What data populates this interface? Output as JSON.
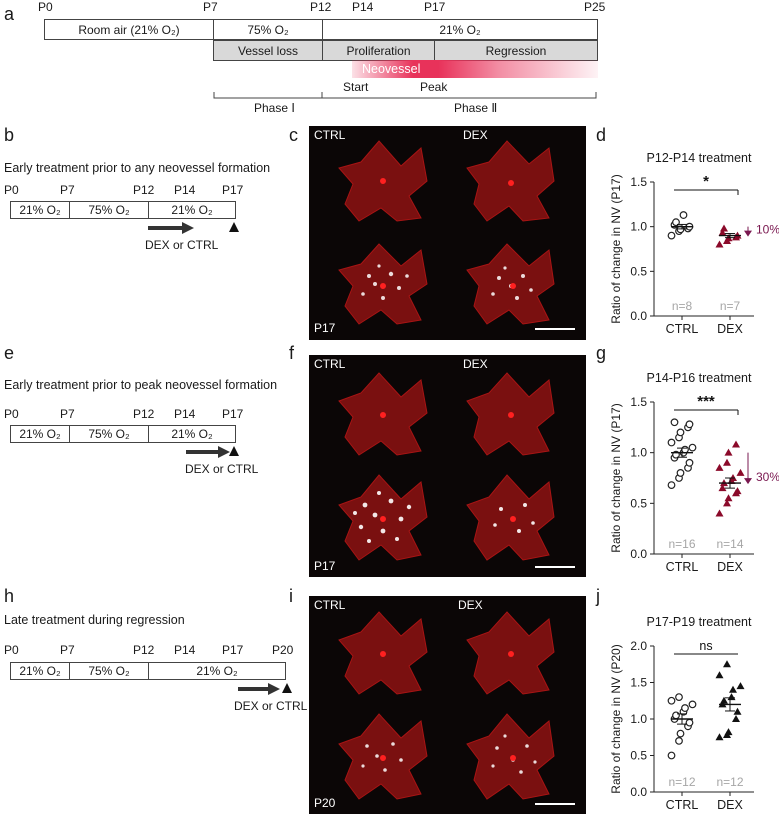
{
  "panel_a": {
    "label": "a",
    "day_labels": [
      "P0",
      "P7",
      "P12",
      "P14",
      "P17",
      "P25"
    ],
    "row1": [
      "Room air (21% O₂)",
      "75% O₂",
      "21% O₂"
    ],
    "row2": [
      "Vessel loss",
      "Proliferation",
      "Regression"
    ],
    "neovessel": "Neovessel",
    "start": "Start",
    "peak": "Peak",
    "phase1": "Phase Ⅰ",
    "phase2": "Phase Ⅱ"
  },
  "rows": [
    {
      "schematic_label": "b",
      "title": "Early treatment prior to any neovessel formation",
      "days": [
        "P0",
        "P7",
        "P12",
        "P14",
        "P17"
      ],
      "boxes": [
        "21% O₂",
        "75% O₂",
        "21% O₂"
      ],
      "treatment": "DEX or CTRL",
      "image_label": "c",
      "ctrl": "CTRL",
      "dex": "DEX",
      "timepoint": "P17",
      "chart_label": "d"
    },
    {
      "schematic_label": "e",
      "title": "Early treatment prior to peak neovessel formation",
      "days": [
        "P0",
        "P7",
        "P12",
        "P14",
        "P17"
      ],
      "boxes": [
        "21% O₂",
        "75% O₂",
        "21% O₂"
      ],
      "treatment": "DEX or CTRL",
      "image_label": "f",
      "ctrl": "CTRL",
      "dex": "DEX",
      "timepoint": "P17",
      "chart_label": "g"
    },
    {
      "schematic_label": "h",
      "title": "Late treatment during regression",
      "days": [
        "P0",
        "P7",
        "P12",
        "P14",
        "P17",
        "P20"
      ],
      "boxes": [
        "21% O₂",
        "75% O₂",
        "21% O₂"
      ],
      "treatment": "DEX or CTRL",
      "image_label": "i",
      "ctrl": "CTRL",
      "dex": "DEX",
      "timepoint": "P20",
      "chart_label": "j"
    }
  ],
  "colors": {
    "dex": "#8b0a2a",
    "dex_arrow": "#7a1850",
    "n_text": "#a6a6a6",
    "neovessel": "#e8325a"
  },
  "chart_data": [
    {
      "type": "scatter",
      "title": "P12-P14 treatment",
      "ylabel": "Ratio of change in NV (P17)",
      "categories": [
        "CTRL",
        "DEX"
      ],
      "ylim": [
        0,
        1.5
      ],
      "yticks": [
        "0.0",
        "0.5",
        "1.0",
        "1.5"
      ],
      "significance": "*",
      "change_label": "10%",
      "n": [
        "n=8",
        "n=7"
      ],
      "series": [
        {
          "name": "CTRL",
          "values": [
            0.9,
            0.95,
            0.97,
            0.98,
            1.0,
            1.02,
            1.05,
            1.13
          ],
          "mean": 1.0,
          "sem": 0.025
        },
        {
          "name": "DEX",
          "values": [
            0.8,
            0.84,
            0.87,
            0.88,
            0.9,
            0.93,
            0.98
          ],
          "mean": 0.9,
          "sem": 0.023
        }
      ]
    },
    {
      "type": "scatter",
      "title": "P14-P16 treatment",
      "ylabel": "Ratio of change in NV (P17)",
      "categories": [
        "CTRL",
        "DEX"
      ],
      "ylim": [
        0,
        1.5
      ],
      "yticks": [
        "0.0",
        "0.5",
        "1.0",
        "1.5"
      ],
      "significance": "***",
      "change_label": "30%",
      "n": [
        "n=16",
        "n=14"
      ],
      "series": [
        {
          "name": "CTRL",
          "values": [
            0.68,
            0.75,
            0.8,
            0.85,
            0.9,
            0.95,
            0.98,
            1.0,
            1.03,
            1.05,
            1.1,
            1.15,
            1.2,
            1.25,
            1.28,
            1.3
          ],
          "mean": 1.0,
          "sem": 0.045
        },
        {
          "name": "DEX",
          "values": [
            0.4,
            0.5,
            0.55,
            0.6,
            0.62,
            0.65,
            0.7,
            0.72,
            0.75,
            0.8,
            0.85,
            0.9,
            1.0,
            1.08
          ],
          "mean": 0.7,
          "sem": 0.05
        }
      ]
    },
    {
      "type": "scatter",
      "title": "P17-P19 treatment",
      "ylabel": "Ratio of change in NV (P20)",
      "categories": [
        "CTRL",
        "DEX"
      ],
      "ylim": [
        0,
        2.0
      ],
      "yticks": [
        "0.0",
        "0.5",
        "1.0",
        "1.5",
        "2.0"
      ],
      "significance": "ns",
      "change_label": "",
      "n": [
        "n=12",
        "n=12"
      ],
      "series": [
        {
          "name": "CTRL",
          "values": [
            0.5,
            0.7,
            0.8,
            0.9,
            0.95,
            1.0,
            1.05,
            1.1,
            1.15,
            1.2,
            1.25,
            1.3
          ],
          "mean": 1.0,
          "sem": 0.07
        },
        {
          "name": "DEX",
          "values": [
            0.75,
            0.78,
            0.82,
            1.0,
            1.1,
            1.2,
            1.25,
            1.3,
            1.4,
            1.45,
            1.6,
            1.75
          ],
          "mean": 1.2,
          "sem": 0.09
        }
      ]
    }
  ]
}
